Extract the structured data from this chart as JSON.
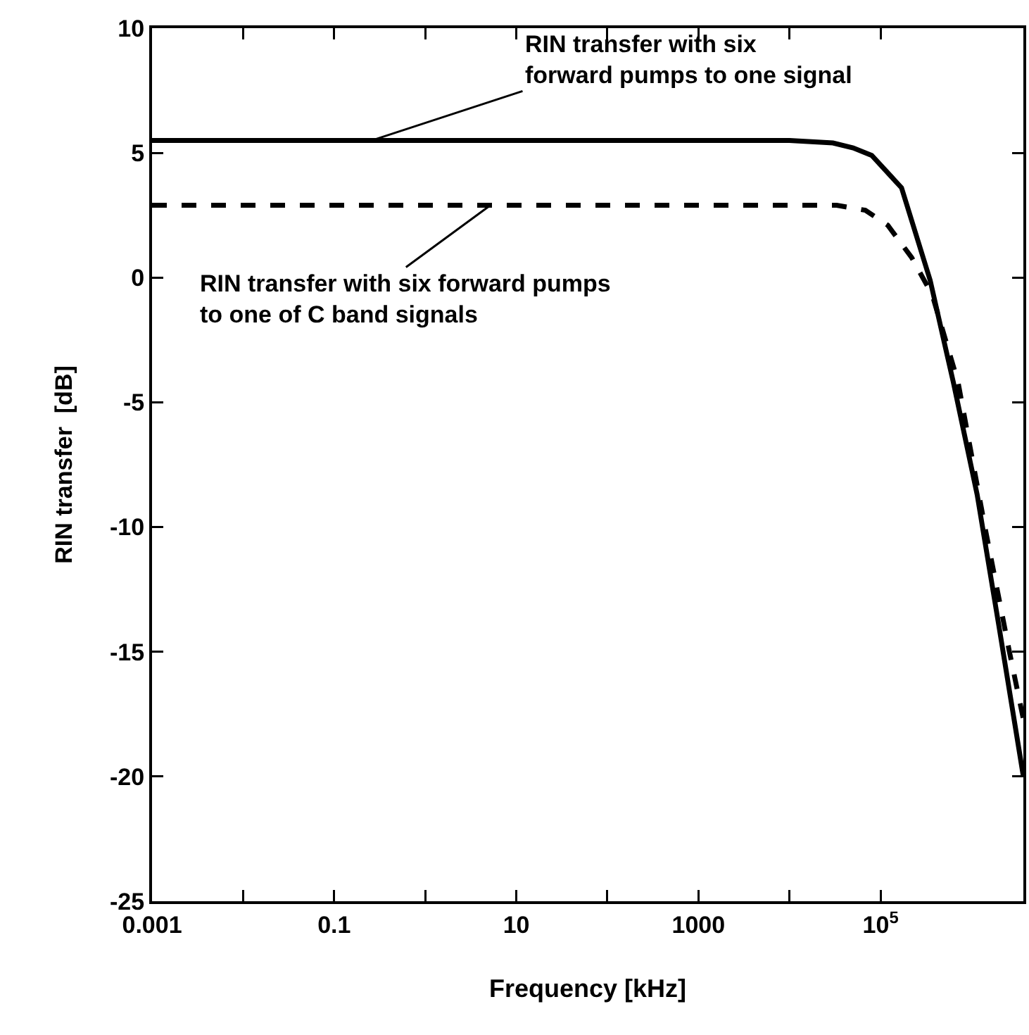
{
  "chart_data": {
    "type": "line",
    "xlabel": "Frequency [kHz]",
    "ylabel": "RIN transfer  [dB]",
    "log": "x",
    "grid": false,
    "marker": "none",
    "xlim": [
      0.001,
      3700000
    ],
    "xticks": [
      0.001,
      {
        "value": 0.01,
        "label": null
      },
      0.1,
      {
        "value": 1,
        "label": null
      },
      10,
      {
        "value": 100,
        "label": null
      },
      1000,
      {
        "value": 10000,
        "label": null
      },
      {
        "value": 100000,
        "label": "10$^{5}$"
      }
    ],
    "ylim": [
      -25,
      10
    ],
    "yticks": [
      -25,
      -20,
      -15,
      -10,
      -5,
      0,
      5,
      10
    ],
    "series": [
      {
        "color": "#000000",
        "line_style": "solid",
        "x": [
          0.001,
          10000,
          30000,
          50000,
          80000,
          170000,
          350000,
          630000,
          1150000,
          2000000,
          3700000
        ],
        "values": [
          5.5,
          5.5,
          5.4,
          5.2,
          4.9,
          3.6,
          -0.1,
          -4.2,
          -8.7,
          -14,
          -20
        ]
      },
      {
        "color": "#000000",
        "line_style": "dashed",
        "x": [
          0.001,
          10000,
          33000,
          68000,
          120000,
          220000,
          370000,
          710000,
          1400000,
          2600000,
          3700000
        ],
        "values": [
          2.9,
          2.9,
          2.9,
          2.7,
          2.1,
          0.8,
          -0.7,
          -4.2,
          -10,
          -15,
          -17.7
        ]
      }
    ],
    "annotations": [
      {
        "text": "RIN transfer with six\nforward pumps to one signal",
        "x": 0.26,
        "y": 5.5
      },
      {
        "text": "RIN transfer with six forward pumps\nto one of C band signals",
        "x": 5.2,
        "y": 2.9
      }
    ]
  }
}
